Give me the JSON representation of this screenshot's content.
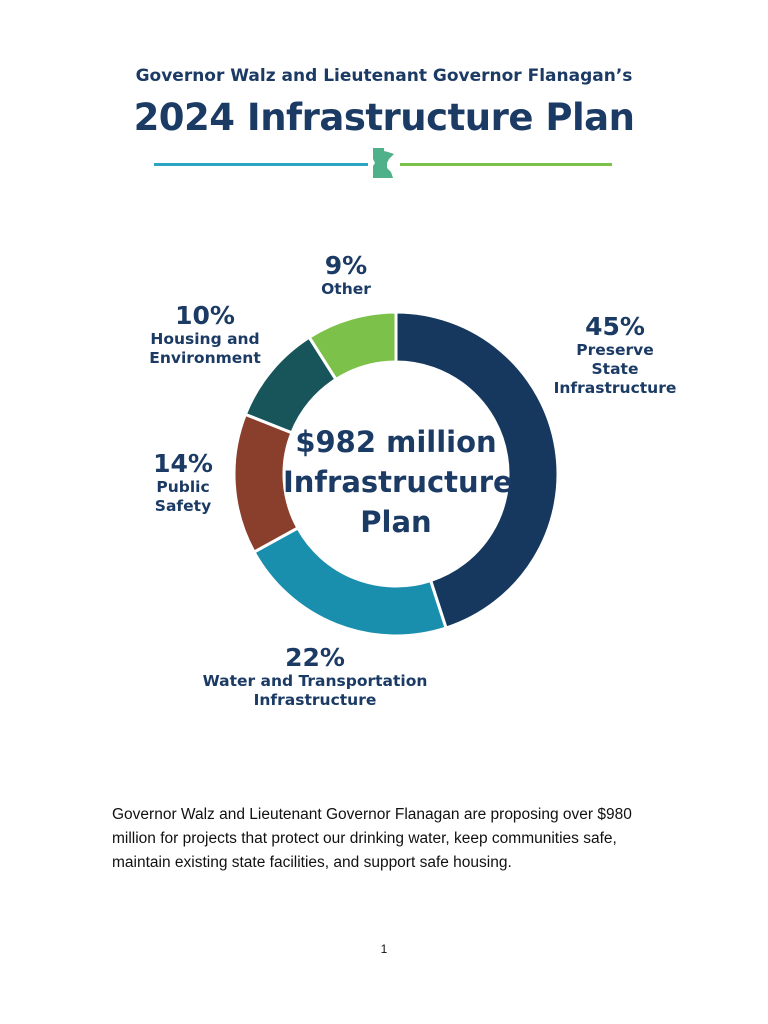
{
  "header": {
    "subtitle": "Governor Walz and Lieutenant Governor Flanagan’s",
    "title": "2024 Infrastructure Plan",
    "icon": "minnesota-state-icon",
    "colors": {
      "rule_left": "#2aa6c2",
      "rule_right": "#7cc24a",
      "icon": "#4fb08a"
    }
  },
  "chart_data": {
    "type": "pie",
    "variant": "donut",
    "center_label": [
      "$982 million",
      "Infrastructure",
      "Plan"
    ],
    "slices": [
      {
        "pct_label": "45%",
        "value": 45,
        "label_lines": [
          "Preserve",
          "State",
          "Infrastructure"
        ],
        "color": "#16385f"
      },
      {
        "pct_label": "22%",
        "value": 22,
        "label_lines": [
          "Water and Transportation",
          "Infrastructure"
        ],
        "color": "#1a8fad"
      },
      {
        "pct_label": "14%",
        "value": 14,
        "label_lines": [
          "Public",
          "Safety"
        ],
        "color": "#8a3f2c"
      },
      {
        "pct_label": "10%",
        "value": 10,
        "label_lines": [
          "Housing and",
          "Environment"
        ],
        "color": "#17555a"
      },
      {
        "pct_label": "9%",
        "value": 9,
        "label_lines": [
          "Other"
        ],
        "color": "#7cc24a"
      }
    ]
  },
  "body": {
    "paragraph": "Governor Walz and Lieutenant Governor Flanagan are proposing over $980 million for projects that protect our drinking water, keep communities safe, maintain existing state facilities, and support safe housing."
  },
  "footer": {
    "page_number": "1"
  }
}
